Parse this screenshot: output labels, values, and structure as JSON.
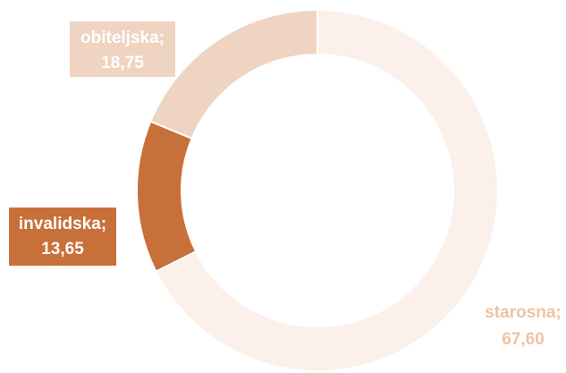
{
  "chart_data": {
    "type": "donut",
    "categories": [
      "starosna;",
      "invalidska;",
      "obiteljska;"
    ],
    "values": [
      67.6,
      13.65,
      18.75
    ],
    "value_labels": [
      "67,60",
      "13,65",
      "18,75"
    ],
    "colors": [
      "#fbf0ea",
      "#c8703a",
      "#efd4c2"
    ]
  }
}
